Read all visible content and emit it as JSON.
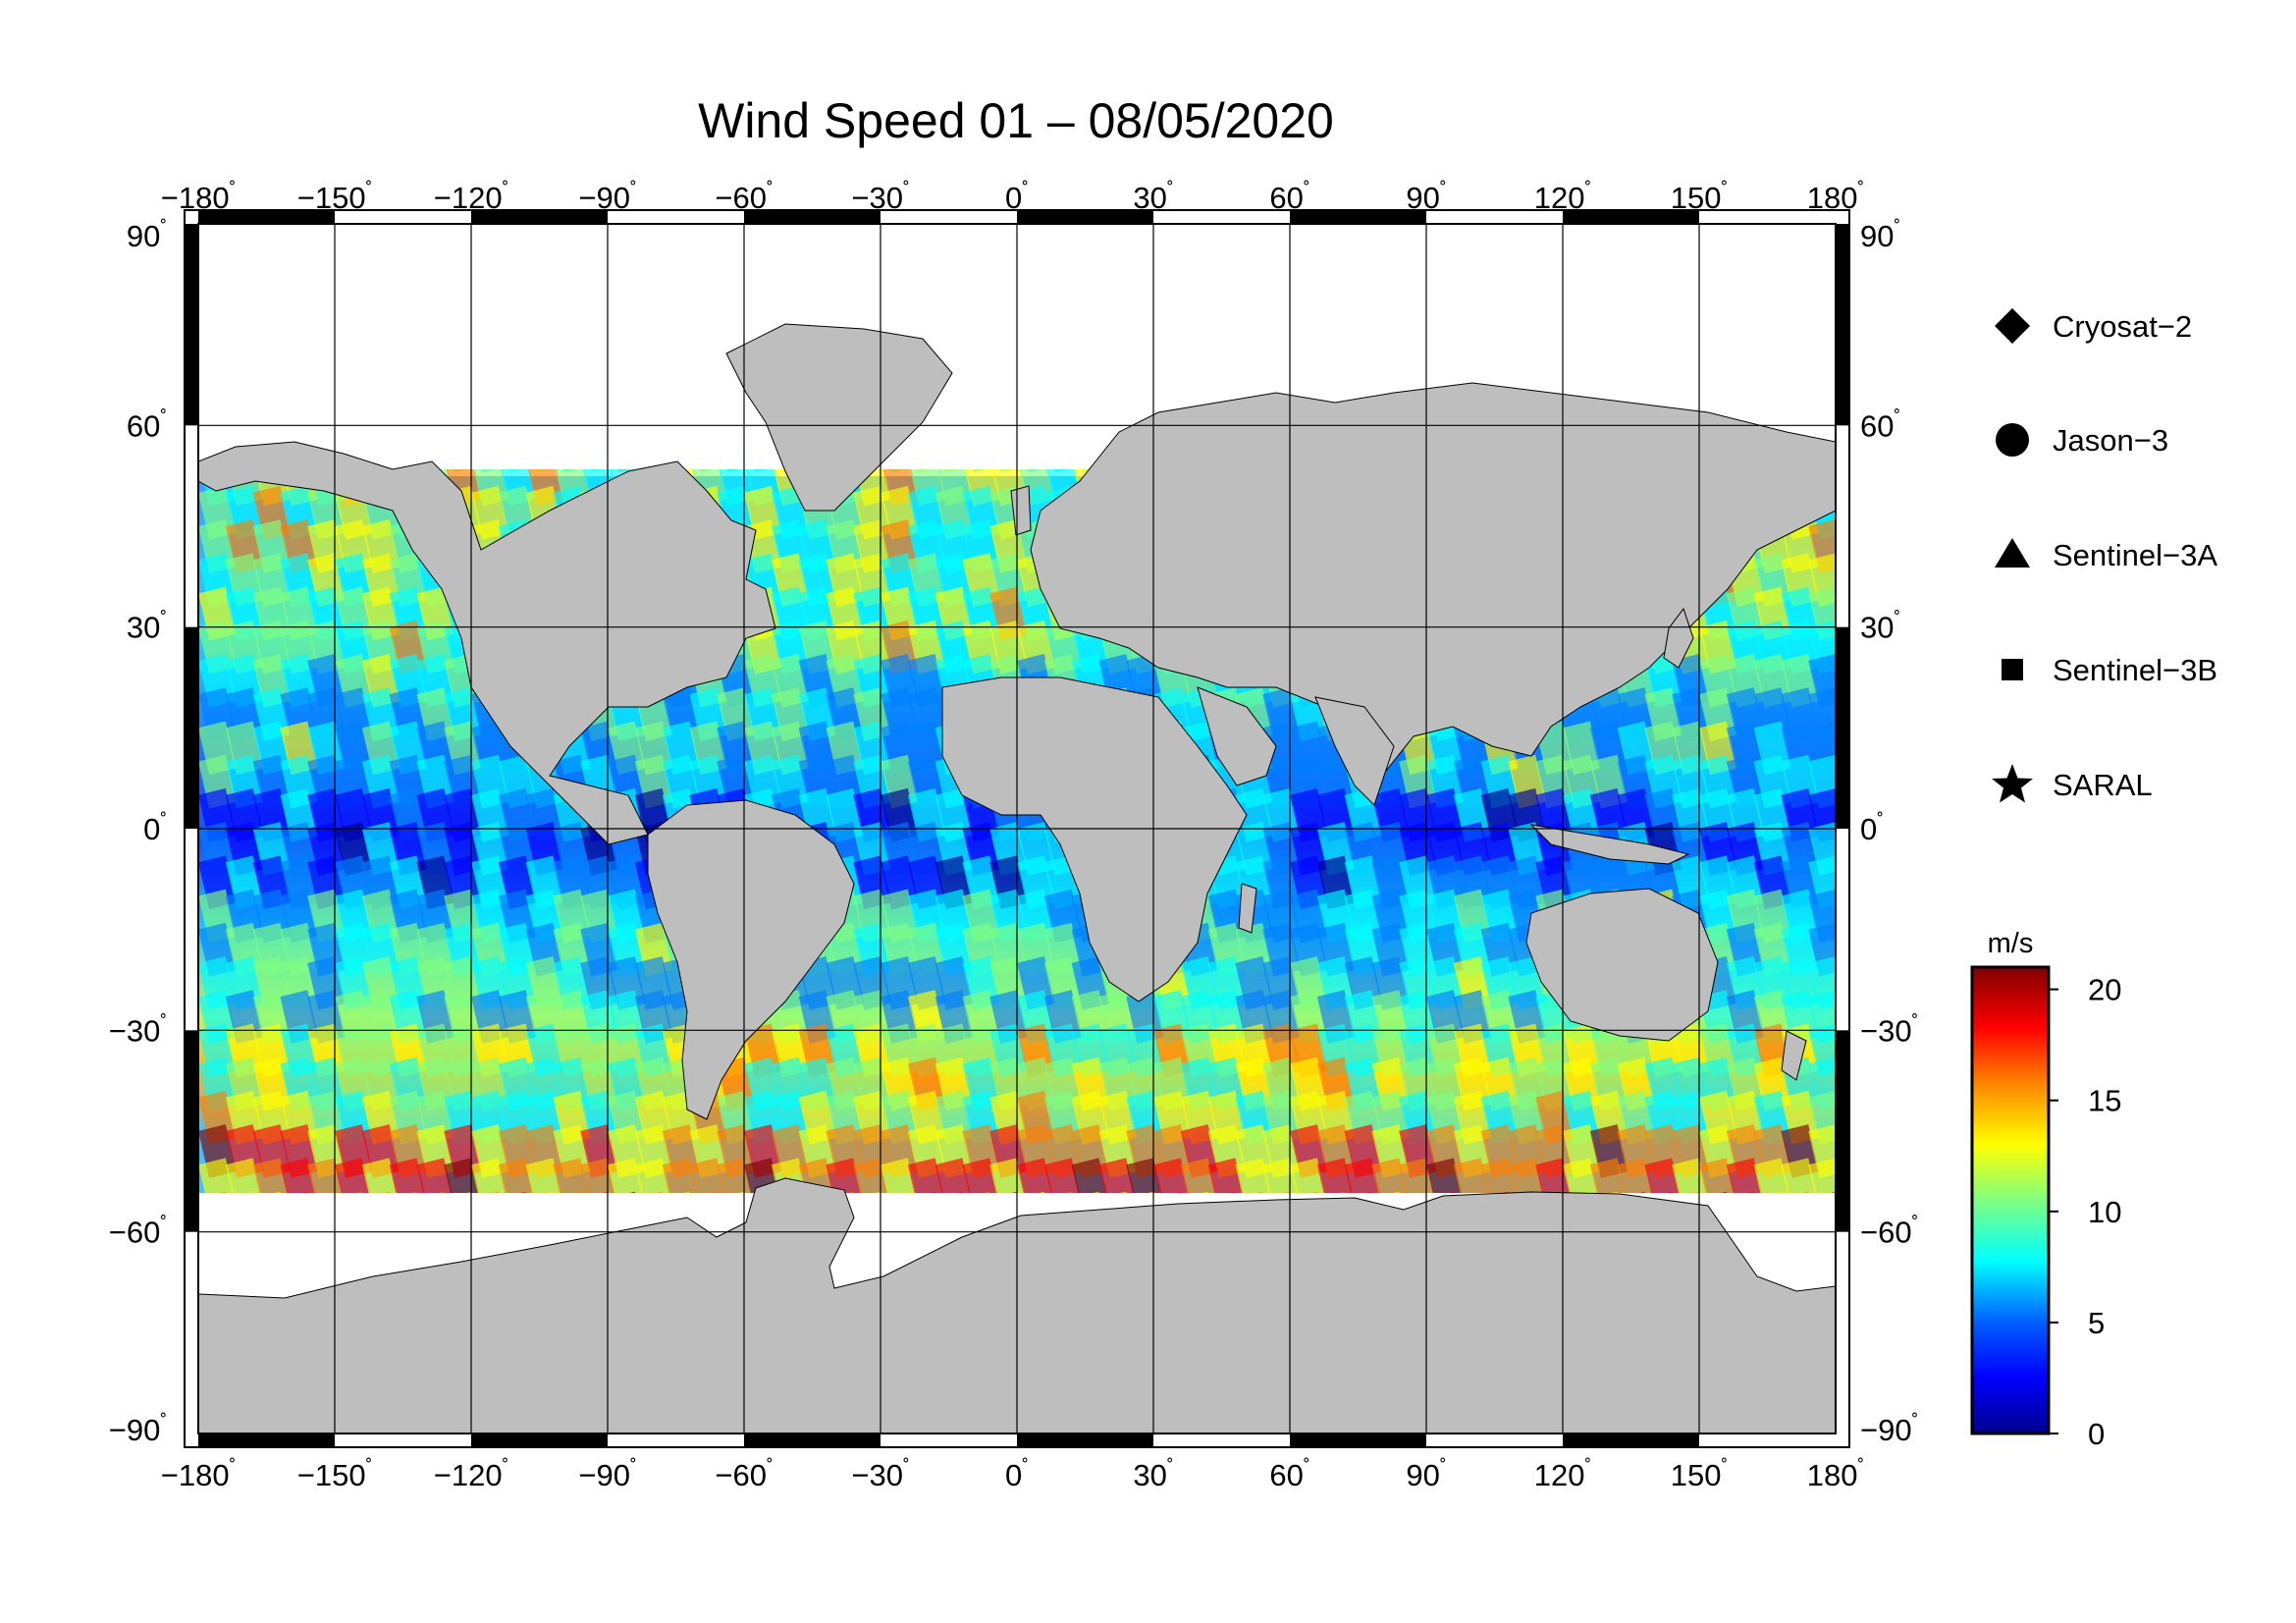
{
  "title": "Wind Speed 01 – 08/05/2020",
  "map": {
    "lon_ticks": [
      "−180",
      "−150",
      "−120",
      "−90",
      "−60",
      "−30",
      "0",
      "30",
      "60",
      "90",
      "120",
      "150",
      "180"
    ],
    "lon_values": [
      -180,
      -150,
      -120,
      -90,
      -60,
      -30,
      0,
      30,
      60,
      90,
      120,
      150,
      180
    ],
    "lat_ticks": [
      "90",
      "60",
      "30",
      "0",
      "−30",
      "−60",
      "−90"
    ],
    "lat_values": [
      90,
      60,
      30,
      0,
      -30,
      -60,
      -90
    ],
    "degree_symbol": "˚",
    "ocean_sample_speeds": {
      "equatorial_band": 5,
      "tropics": 8,
      "mid_latitudes": 11,
      "southern_ocean": 16
    }
  },
  "legend": {
    "items": [
      {
        "label": "Cryosat−2",
        "symbol": "diamond"
      },
      {
        "label": "Jason−3",
        "symbol": "circle"
      },
      {
        "label": "Sentinel−3A",
        "symbol": "triangle"
      },
      {
        "label": "Sentinel−3B",
        "symbol": "square"
      },
      {
        "label": "SARAL",
        "symbol": "star"
      }
    ]
  },
  "colorbar": {
    "unit": "m/s",
    "ticks": [
      "20",
      "15",
      "10",
      "5",
      "0"
    ],
    "tick_values": [
      20,
      15,
      10,
      5,
      0
    ],
    "range": [
      0,
      21
    ],
    "colors": [
      "#00008f",
      "#0000ff",
      "#0080ff",
      "#00ffff",
      "#80ff80",
      "#ffff00",
      "#ff8000",
      "#ff0000",
      "#800000"
    ]
  },
  "colors": {
    "land": "#bebebe",
    "ice_nodata": "#ffffff",
    "frame": "#000000"
  }
}
